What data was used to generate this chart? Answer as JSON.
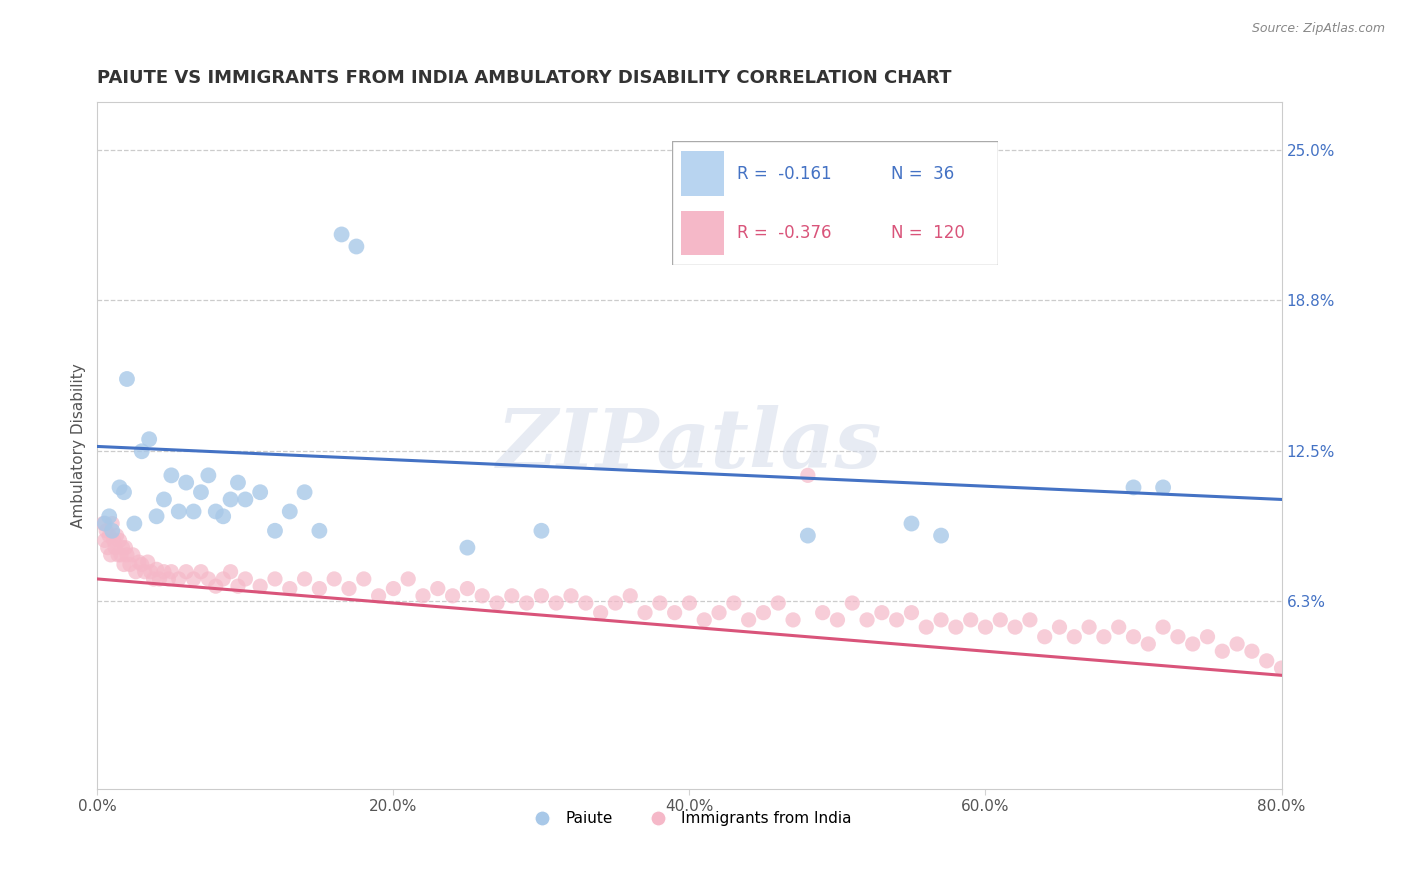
{
  "title": "PAIUTE VS IMMIGRANTS FROM INDIA AMBULATORY DISABILITY CORRELATION CHART",
  "source": "Source: ZipAtlas.com",
  "ylabel": "Ambulatory Disability",
  "xlim": [
    0.0,
    0.8
  ],
  "ylim": [
    -0.015,
    0.27
  ],
  "xtick_labels": [
    "0.0%",
    "20.0%",
    "40.0%",
    "60.0%",
    "80.0%"
  ],
  "xtick_vals": [
    0.0,
    0.2,
    0.4,
    0.6,
    0.8
  ],
  "ytick_right_labels": [
    "25.0%",
    "18.8%",
    "12.5%",
    "6.3%"
  ],
  "ytick_right_vals": [
    0.25,
    0.188,
    0.125,
    0.063
  ],
  "watermark": "ZIPatlas",
  "blue_scatter_color": "#a8c8e8",
  "pink_scatter_color": "#f5b8c8",
  "blue_line_color": "#4472c4",
  "pink_line_color": "#d9547a",
  "legend_blue_fill": "#b8d4f0",
  "legend_pink_fill": "#f5b8c8",
  "paiute_points": [
    [
      0.005,
      0.095
    ],
    [
      0.008,
      0.098
    ],
    [
      0.01,
      0.092
    ],
    [
      0.015,
      0.11
    ],
    [
      0.018,
      0.108
    ],
    [
      0.02,
      0.155
    ],
    [
      0.025,
      0.095
    ],
    [
      0.03,
      0.125
    ],
    [
      0.035,
      0.13
    ],
    [
      0.04,
      0.098
    ],
    [
      0.045,
      0.105
    ],
    [
      0.05,
      0.115
    ],
    [
      0.055,
      0.1
    ],
    [
      0.06,
      0.112
    ],
    [
      0.065,
      0.1
    ],
    [
      0.07,
      0.108
    ],
    [
      0.075,
      0.115
    ],
    [
      0.08,
      0.1
    ],
    [
      0.085,
      0.098
    ],
    [
      0.09,
      0.105
    ],
    [
      0.095,
      0.112
    ],
    [
      0.1,
      0.105
    ],
    [
      0.11,
      0.108
    ],
    [
      0.12,
      0.092
    ],
    [
      0.13,
      0.1
    ],
    [
      0.14,
      0.108
    ],
    [
      0.15,
      0.092
    ],
    [
      0.165,
      0.215
    ],
    [
      0.175,
      0.21
    ],
    [
      0.25,
      0.085
    ],
    [
      0.3,
      0.092
    ],
    [
      0.48,
      0.09
    ],
    [
      0.55,
      0.095
    ],
    [
      0.57,
      0.09
    ],
    [
      0.7,
      0.11
    ],
    [
      0.72,
      0.11
    ]
  ],
  "india_points": [
    [
      0.004,
      0.095
    ],
    [
      0.005,
      0.088
    ],
    [
      0.006,
      0.092
    ],
    [
      0.007,
      0.085
    ],
    [
      0.008,
      0.09
    ],
    [
      0.009,
      0.082
    ],
    [
      0.01,
      0.095
    ],
    [
      0.011,
      0.088
    ],
    [
      0.012,
      0.085
    ],
    [
      0.013,
      0.09
    ],
    [
      0.014,
      0.082
    ],
    [
      0.015,
      0.088
    ],
    [
      0.016,
      0.082
    ],
    [
      0.017,
      0.085
    ],
    [
      0.018,
      0.078
    ],
    [
      0.019,
      0.085
    ],
    [
      0.02,
      0.082
    ],
    [
      0.022,
      0.078
    ],
    [
      0.024,
      0.082
    ],
    [
      0.026,
      0.075
    ],
    [
      0.028,
      0.079
    ],
    [
      0.03,
      0.078
    ],
    [
      0.032,
      0.075
    ],
    [
      0.034,
      0.079
    ],
    [
      0.036,
      0.075
    ],
    [
      0.038,
      0.072
    ],
    [
      0.04,
      0.076
    ],
    [
      0.042,
      0.072
    ],
    [
      0.045,
      0.075
    ],
    [
      0.048,
      0.072
    ],
    [
      0.05,
      0.075
    ],
    [
      0.055,
      0.072
    ],
    [
      0.06,
      0.075
    ],
    [
      0.065,
      0.072
    ],
    [
      0.07,
      0.075
    ],
    [
      0.075,
      0.072
    ],
    [
      0.08,
      0.069
    ],
    [
      0.085,
      0.072
    ],
    [
      0.09,
      0.075
    ],
    [
      0.095,
      0.069
    ],
    [
      0.1,
      0.072
    ],
    [
      0.11,
      0.069
    ],
    [
      0.12,
      0.072
    ],
    [
      0.13,
      0.068
    ],
    [
      0.14,
      0.072
    ],
    [
      0.15,
      0.068
    ],
    [
      0.16,
      0.072
    ],
    [
      0.17,
      0.068
    ],
    [
      0.18,
      0.072
    ],
    [
      0.19,
      0.065
    ],
    [
      0.2,
      0.068
    ],
    [
      0.21,
      0.072
    ],
    [
      0.22,
      0.065
    ],
    [
      0.23,
      0.068
    ],
    [
      0.24,
      0.065
    ],
    [
      0.25,
      0.068
    ],
    [
      0.26,
      0.065
    ],
    [
      0.27,
      0.062
    ],
    [
      0.28,
      0.065
    ],
    [
      0.29,
      0.062
    ],
    [
      0.3,
      0.065
    ],
    [
      0.31,
      0.062
    ],
    [
      0.32,
      0.065
    ],
    [
      0.33,
      0.062
    ],
    [
      0.34,
      0.058
    ],
    [
      0.35,
      0.062
    ],
    [
      0.36,
      0.065
    ],
    [
      0.37,
      0.058
    ],
    [
      0.38,
      0.062
    ],
    [
      0.39,
      0.058
    ],
    [
      0.4,
      0.062
    ],
    [
      0.41,
      0.055
    ],
    [
      0.42,
      0.058
    ],
    [
      0.43,
      0.062
    ],
    [
      0.44,
      0.055
    ],
    [
      0.45,
      0.058
    ],
    [
      0.46,
      0.062
    ],
    [
      0.47,
      0.055
    ],
    [
      0.48,
      0.115
    ],
    [
      0.49,
      0.058
    ],
    [
      0.5,
      0.055
    ],
    [
      0.51,
      0.062
    ],
    [
      0.52,
      0.055
    ],
    [
      0.53,
      0.058
    ],
    [
      0.54,
      0.055
    ],
    [
      0.55,
      0.058
    ],
    [
      0.56,
      0.052
    ],
    [
      0.57,
      0.055
    ],
    [
      0.58,
      0.052
    ],
    [
      0.59,
      0.055
    ],
    [
      0.6,
      0.052
    ],
    [
      0.61,
      0.055
    ],
    [
      0.62,
      0.052
    ],
    [
      0.63,
      0.055
    ],
    [
      0.64,
      0.048
    ],
    [
      0.65,
      0.052
    ],
    [
      0.66,
      0.048
    ],
    [
      0.67,
      0.052
    ],
    [
      0.68,
      0.048
    ],
    [
      0.69,
      0.052
    ],
    [
      0.7,
      0.048
    ],
    [
      0.71,
      0.045
    ],
    [
      0.72,
      0.052
    ],
    [
      0.73,
      0.048
    ],
    [
      0.74,
      0.045
    ],
    [
      0.75,
      0.048
    ],
    [
      0.76,
      0.042
    ],
    [
      0.77,
      0.045
    ],
    [
      0.78,
      0.042
    ],
    [
      0.79,
      0.038
    ],
    [
      0.8,
      0.035
    ]
  ],
  "blue_line": [
    [
      0.0,
      0.127
    ],
    [
      0.8,
      0.105
    ]
  ],
  "pink_line": [
    [
      0.0,
      0.072
    ],
    [
      0.8,
      0.032
    ]
  ]
}
